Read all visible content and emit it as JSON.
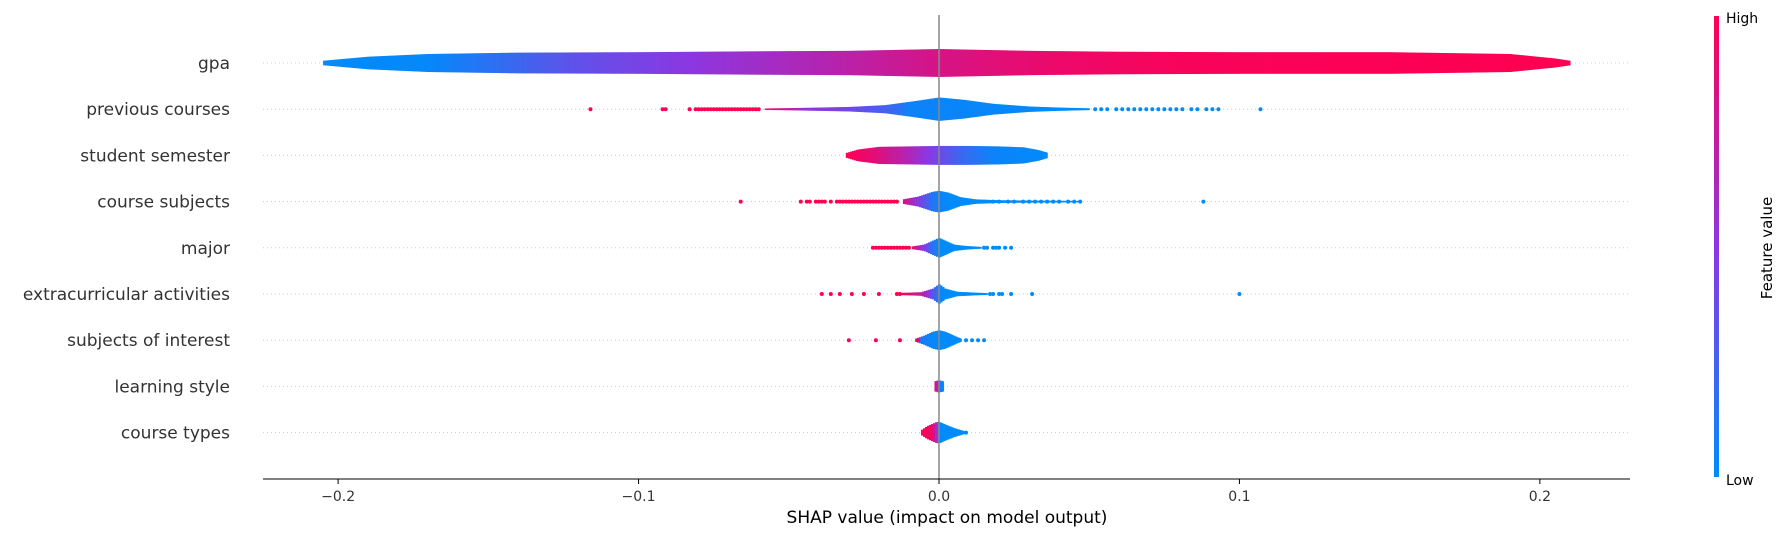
{
  "chart_data": {
    "type": "violin",
    "xlabel": "SHAP value (impact on model output)",
    "xlim": [
      -0.225,
      0.23
    ],
    "xticks": [
      -0.2,
      -0.1,
      0.0,
      0.1,
      0.2
    ],
    "xtick_labels": [
      "−0.2",
      "−0.1",
      "0.0",
      "0.1",
      "0.2"
    ],
    "colorbar": {
      "title": "Feature value",
      "high_label": "High",
      "low_label": "Low",
      "low_color": "#008bfb",
      "high_color": "#ff0052"
    },
    "zero_line": true,
    "features": [
      {
        "name": "gpa",
        "range": [
          -0.205,
          0.21
        ],
        "profile": [
          [
            -0.205,
            0.25
          ],
          [
            -0.19,
            0.7
          ],
          [
            -0.17,
            1.0
          ],
          [
            -0.14,
            1.15
          ],
          [
            -0.1,
            1.2
          ],
          [
            -0.06,
            1.3
          ],
          [
            -0.03,
            1.35
          ],
          [
            0.0,
            1.55
          ],
          [
            0.03,
            1.35
          ],
          [
            0.06,
            1.25
          ],
          [
            0.1,
            1.2
          ],
          [
            0.15,
            1.2
          ],
          [
            0.19,
            1.0
          ],
          [
            0.205,
            0.5
          ],
          [
            0.21,
            0.25
          ]
        ],
        "colors": [
          [
            -0.205,
            0.0
          ],
          [
            -0.17,
            0.02
          ],
          [
            -0.12,
            0.35
          ],
          [
            -0.07,
            0.55
          ],
          [
            -0.03,
            0.7
          ],
          [
            0.0,
            0.82
          ],
          [
            0.04,
            0.92
          ],
          [
            0.08,
            0.97
          ],
          [
            0.21,
            1.0
          ]
        ],
        "points": []
      },
      {
        "name": "previous courses",
        "range": [
          -0.058,
          0.05
        ],
        "profile": [
          [
            -0.058,
            0.08
          ],
          [
            -0.045,
            0.15
          ],
          [
            -0.03,
            0.25
          ],
          [
            -0.018,
            0.45
          ],
          [
            -0.008,
            0.9
          ],
          [
            0.0,
            1.3
          ],
          [
            0.008,
            1.05
          ],
          [
            0.018,
            0.6
          ],
          [
            0.03,
            0.3
          ],
          [
            0.04,
            0.18
          ],
          [
            0.05,
            0.1
          ]
        ],
        "colors": [
          [
            -0.058,
            0.95
          ],
          [
            -0.045,
            0.55
          ],
          [
            -0.03,
            0.4
          ],
          [
            -0.015,
            0.2
          ],
          [
            -0.01,
            0.05
          ],
          [
            0.05,
            0.0
          ]
        ],
        "points": [
          [
            -0.116,
            1
          ],
          [
            -0.092,
            1
          ],
          [
            -0.091,
            1
          ],
          [
            -0.083,
            1
          ],
          [
            -0.081,
            1
          ],
          [
            -0.08,
            1
          ],
          [
            -0.079,
            1
          ],
          [
            -0.078,
            1
          ],
          [
            -0.077,
            1
          ],
          [
            -0.076,
            1
          ],
          [
            -0.075,
            1
          ],
          [
            -0.074,
            1
          ],
          [
            -0.073,
            1
          ],
          [
            -0.072,
            1
          ],
          [
            -0.071,
            1
          ],
          [
            -0.07,
            1
          ],
          [
            -0.069,
            1
          ],
          [
            -0.068,
            1
          ],
          [
            -0.067,
            1
          ],
          [
            -0.066,
            1
          ],
          [
            -0.065,
            1
          ],
          [
            -0.064,
            1
          ],
          [
            -0.063,
            1
          ],
          [
            -0.062,
            1
          ],
          [
            -0.061,
            1
          ],
          [
            -0.06,
            1
          ],
          [
            0.052,
            0
          ],
          [
            0.054,
            0
          ],
          [
            0.056,
            0
          ],
          [
            0.059,
            0
          ],
          [
            0.061,
            0
          ],
          [
            0.063,
            0
          ],
          [
            0.065,
            0
          ],
          [
            0.067,
            0
          ],
          [
            0.069,
            0
          ],
          [
            0.071,
            0
          ],
          [
            0.073,
            0
          ],
          [
            0.075,
            0
          ],
          [
            0.077,
            0
          ],
          [
            0.079,
            0
          ],
          [
            0.081,
            0
          ],
          [
            0.084,
            0
          ],
          [
            0.086,
            0
          ],
          [
            0.089,
            0
          ],
          [
            0.091,
            0
          ],
          [
            0.093,
            0
          ],
          [
            0.107,
            0
          ]
        ]
      },
      {
        "name": "student semester",
        "range": [
          -0.031,
          0.036
        ],
        "profile": [
          [
            -0.031,
            0.25
          ],
          [
            -0.027,
            0.65
          ],
          [
            -0.02,
            0.95
          ],
          [
            -0.01,
            1.0
          ],
          [
            0.0,
            1.05
          ],
          [
            0.01,
            1.05
          ],
          [
            0.02,
            1.0
          ],
          [
            0.028,
            0.9
          ],
          [
            0.033,
            0.6
          ],
          [
            0.036,
            0.3
          ]
        ],
        "colors": [
          [
            -0.031,
            1.0
          ],
          [
            -0.02,
            0.85
          ],
          [
            -0.01,
            0.65
          ],
          [
            0.0,
            0.4
          ],
          [
            0.008,
            0.2
          ],
          [
            0.018,
            0.05
          ],
          [
            0.036,
            0.0
          ]
        ],
        "points": []
      },
      {
        "name": "course subjects",
        "range": [
          -0.012,
          0.047
        ],
        "profile": [
          [
            -0.012,
            0.25
          ],
          [
            -0.007,
            0.55
          ],
          [
            -0.002,
            1.1
          ],
          [
            0.0,
            1.2
          ],
          [
            0.003,
            1.0
          ],
          [
            0.007,
            0.5
          ],
          [
            0.012,
            0.25
          ],
          [
            0.02,
            0.15
          ],
          [
            0.035,
            0.1
          ],
          [
            0.047,
            0.08
          ]
        ],
        "colors": [
          [
            -0.012,
            0.85
          ],
          [
            -0.006,
            0.4
          ],
          [
            -0.002,
            0.1
          ],
          [
            0.003,
            0.0
          ],
          [
            0.047,
            0.0
          ]
        ],
        "points": [
          [
            -0.066,
            1
          ],
          [
            -0.046,
            1
          ],
          [
            -0.044,
            1
          ],
          [
            -0.043,
            1
          ],
          [
            -0.041,
            1
          ],
          [
            -0.04,
            1
          ],
          [
            -0.039,
            1
          ],
          [
            -0.038,
            1
          ],
          [
            -0.036,
            1
          ],
          [
            -0.034,
            1
          ],
          [
            -0.033,
            1
          ],
          [
            -0.032,
            1
          ],
          [
            -0.031,
            1
          ],
          [
            -0.03,
            1
          ],
          [
            -0.029,
            1
          ],
          [
            -0.028,
            1
          ],
          [
            -0.027,
            1
          ],
          [
            -0.026,
            1
          ],
          [
            -0.025,
            1
          ],
          [
            -0.024,
            1
          ],
          [
            -0.023,
            1
          ],
          [
            -0.022,
            1
          ],
          [
            -0.021,
            1
          ],
          [
            -0.02,
            1
          ],
          [
            -0.019,
            1
          ],
          [
            -0.018,
            1
          ],
          [
            -0.017,
            1
          ],
          [
            -0.016,
            1
          ],
          [
            -0.015,
            1
          ],
          [
            -0.014,
            1
          ],
          [
            0.015,
            0
          ],
          [
            0.018,
            0
          ],
          [
            0.02,
            0
          ],
          [
            0.023,
            0
          ],
          [
            0.025,
            0
          ],
          [
            0.028,
            0
          ],
          [
            0.03,
            0
          ],
          [
            0.032,
            0
          ],
          [
            0.034,
            0
          ],
          [
            0.036,
            0
          ],
          [
            0.038,
            0
          ],
          [
            0.04,
            0
          ],
          [
            0.043,
            0
          ],
          [
            0.045,
            0
          ],
          [
            0.047,
            0
          ],
          [
            0.088,
            0
          ]
        ]
      },
      {
        "name": "major",
        "range": [
          -0.009,
          0.014
        ],
        "profile": [
          [
            -0.009,
            0.15
          ],
          [
            -0.005,
            0.35
          ],
          [
            -0.002,
            0.8
          ],
          [
            0.0,
            1.1
          ],
          [
            0.002,
            0.8
          ],
          [
            0.005,
            0.35
          ],
          [
            0.009,
            0.2
          ],
          [
            0.014,
            0.1
          ]
        ],
        "colors": [
          [
            -0.009,
            0.9
          ],
          [
            -0.005,
            0.5
          ],
          [
            -0.002,
            0.15
          ],
          [
            0.0,
            0.0
          ],
          [
            0.014,
            0.0
          ]
        ],
        "points": [
          [
            -0.022,
            1
          ],
          [
            -0.021,
            1
          ],
          [
            -0.02,
            1
          ],
          [
            -0.019,
            1
          ],
          [
            -0.018,
            1
          ],
          [
            -0.017,
            1
          ],
          [
            -0.016,
            1
          ],
          [
            -0.015,
            1
          ],
          [
            -0.014,
            1
          ],
          [
            -0.013,
            1
          ],
          [
            -0.012,
            1
          ],
          [
            -0.011,
            1
          ],
          [
            -0.01,
            1
          ],
          [
            0.015,
            0
          ],
          [
            0.016,
            0
          ],
          [
            0.018,
            0
          ],
          [
            0.019,
            0
          ],
          [
            0.02,
            0
          ],
          [
            0.022,
            0
          ],
          [
            0.024,
            0
          ]
        ]
      },
      {
        "name": "extracurricular activities",
        "range": [
          -0.013,
          0.016
        ],
        "profile": [
          [
            -0.013,
            0.12
          ],
          [
            -0.006,
            0.2
          ],
          [
            -0.002,
            0.6
          ],
          [
            0.0,
            1.1
          ],
          [
            0.002,
            0.6
          ],
          [
            0.006,
            0.25
          ],
          [
            0.012,
            0.15
          ],
          [
            0.016,
            0.1
          ]
        ],
        "colors": [
          [
            -0.013,
            1.0
          ],
          [
            -0.005,
            0.7
          ],
          [
            -0.001,
            0.2
          ],
          [
            0.001,
            0.0
          ],
          [
            0.016,
            0.0
          ]
        ],
        "points": [
          [
            -0.039,
            1
          ],
          [
            -0.036,
            1
          ],
          [
            -0.033,
            1
          ],
          [
            -0.029,
            1
          ],
          [
            -0.025,
            1
          ],
          [
            -0.02,
            1
          ],
          [
            -0.014,
            1
          ],
          [
            -0.013,
            1
          ],
          [
            0.017,
            0
          ],
          [
            0.018,
            0
          ],
          [
            0.02,
            0
          ],
          [
            0.021,
            0
          ],
          [
            0.024,
            0
          ],
          [
            0.031,
            0
          ],
          [
            0.1,
            0
          ]
        ]
      },
      {
        "name": "subjects of interest",
        "range": [
          -0.008,
          0.007
        ],
        "profile": [
          [
            -0.008,
            0.15
          ],
          [
            -0.005,
            0.5
          ],
          [
            -0.002,
            0.95
          ],
          [
            0.0,
            1.1
          ],
          [
            0.002,
            0.95
          ],
          [
            0.005,
            0.5
          ],
          [
            0.007,
            0.2
          ]
        ],
        "colors": [
          [
            -0.008,
            0.2
          ],
          [
            -0.004,
            0.05
          ],
          [
            0.0,
            0.0
          ],
          [
            0.007,
            0.0
          ]
        ],
        "points": [
          [
            -0.03,
            1
          ],
          [
            -0.021,
            1
          ],
          [
            -0.013,
            1
          ],
          [
            -0.007,
            1
          ],
          [
            0.007,
            0
          ],
          [
            0.009,
            0
          ],
          [
            0.011,
            0
          ],
          [
            0.013,
            0
          ],
          [
            0.015,
            0
          ]
        ]
      },
      {
        "name": "learning style",
        "range": [
          -0.0015,
          0.0015
        ],
        "profile": [
          [
            -0.0015,
            0.55
          ],
          [
            -0.0005,
            0.65
          ],
          [
            0.0005,
            0.65
          ],
          [
            0.0015,
            0.55
          ]
        ],
        "colors": [
          [
            -0.0015,
            1.0
          ],
          [
            -0.0005,
            0.6
          ],
          [
            0.0005,
            0.0
          ],
          [
            0.0015,
            0.0
          ]
        ],
        "points": []
      },
      {
        "name": "course types",
        "range": [
          -0.006,
          0.009
        ],
        "profile": [
          [
            -0.006,
            0.25
          ],
          [
            -0.004,
            0.7
          ],
          [
            -0.001,
            1.15
          ],
          [
            0.0,
            1.2
          ],
          [
            0.002,
            0.9
          ],
          [
            0.005,
            0.5
          ],
          [
            0.008,
            0.2
          ],
          [
            0.009,
            0.1
          ]
        ],
        "colors": [
          [
            -0.006,
            1.0
          ],
          [
            -0.002,
            0.9
          ],
          [
            -0.0005,
            0.4
          ],
          [
            0.0003,
            0.0
          ],
          [
            0.009,
            0.0
          ]
        ],
        "points": [
          [
            0.009,
            0
          ]
        ]
      }
    ]
  }
}
